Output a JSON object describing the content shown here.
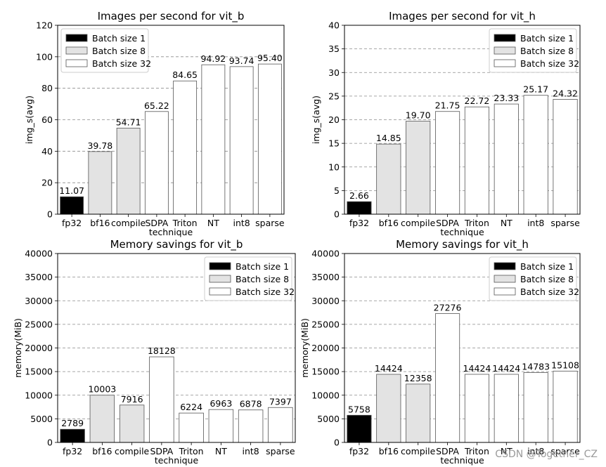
{
  "watermark": "CSDN @Together_CZ",
  "legend_labels": [
    "Batch size 1",
    "Batch size 8",
    "Batch size 32"
  ],
  "colors": {
    "batch1": "#000000",
    "batch8": "#e3e3e3",
    "batch32": "#ffffff",
    "grid": "#8a8a8a"
  },
  "chart_data": [
    {
      "type": "bar",
      "title": "Images per second for vit_b",
      "xlabel": "technique",
      "ylabel": "img_s(avg)",
      "categories": [
        "fp32",
        "bf16",
        "compile",
        "SDPA",
        "Triton",
        "NT",
        "int8",
        "sparse"
      ],
      "values": [
        11.07,
        39.78,
        54.71,
        65.22,
        84.65,
        94.92,
        93.74,
        95.4
      ],
      "value_labels": [
        "11.07",
        "39.78",
        "54.71",
        "65.22",
        "84.65",
        "94.92",
        "93.74",
        "95.40"
      ],
      "batch_sizes": [
        1,
        8,
        8,
        32,
        32,
        32,
        32,
        32
      ],
      "ylim": [
        0,
        120
      ],
      "yticks": [
        "0",
        "20",
        "40",
        "60",
        "80",
        "100",
        "120"
      ],
      "grid": "horizontal dashed",
      "legend": "top-left"
    },
    {
      "type": "bar",
      "title": "Images per second for vit_h",
      "xlabel": "technique",
      "ylabel": "img_s(avg)",
      "categories": [
        "fp32",
        "bf16",
        "compile",
        "SDPA",
        "Triton",
        "NT",
        "int8",
        "sparse"
      ],
      "values": [
        2.66,
        14.85,
        19.7,
        21.75,
        22.72,
        23.33,
        25.17,
        24.32
      ],
      "value_labels": [
        "2.66",
        "14.85",
        "19.70",
        "21.75",
        "22.72",
        "23.33",
        "25.17",
        "24.32"
      ],
      "batch_sizes": [
        1,
        8,
        8,
        32,
        32,
        32,
        32,
        32
      ],
      "ylim": [
        0,
        40
      ],
      "yticks": [
        "0",
        "5",
        "10",
        "15",
        "20",
        "25",
        "30",
        "35",
        "40"
      ],
      "grid": "horizontal dashed",
      "legend": "top-right"
    },
    {
      "type": "bar",
      "title": "Memory savings for vit_b",
      "xlabel": "technique",
      "ylabel": "memory(MiB)",
      "categories": [
        "fp32",
        "bf16",
        "compile",
        "SDPA",
        "Triton",
        "NT",
        "int8",
        "sparse"
      ],
      "values": [
        2789,
        10003,
        7916,
        18128,
        6224,
        6963,
        6878,
        7397
      ],
      "value_labels": [
        "2789",
        "10003",
        "7916",
        "18128",
        "6224",
        "6963",
        "6878",
        "7397"
      ],
      "batch_sizes": [
        1,
        8,
        8,
        32,
        32,
        32,
        32,
        32
      ],
      "ylim": [
        0,
        40000
      ],
      "yticks": [
        "0",
        "5000",
        "10000",
        "15000",
        "20000",
        "25000",
        "30000",
        "35000",
        "40000"
      ],
      "grid": "horizontal dashed",
      "legend": "top-right"
    },
    {
      "type": "bar",
      "title": "Memory savings for vit_h",
      "xlabel": "technique",
      "ylabel": "memory(MiB)",
      "categories": [
        "fp32",
        "bf16",
        "compile",
        "SDPA",
        "Triton",
        "NT",
        "int8",
        "sparse"
      ],
      "values": [
        5758,
        14424,
        12358,
        27276,
        14424,
        14424,
        14783,
        15108
      ],
      "value_labels": [
        "5758",
        "14424",
        "12358",
        "27276",
        "14424",
        "14424",
        "14783",
        "15108"
      ],
      "batch_sizes": [
        1,
        8,
        8,
        32,
        32,
        32,
        32,
        32
      ],
      "ylim": [
        0,
        40000
      ],
      "yticks": [
        "0",
        "5000",
        "10000",
        "15000",
        "20000",
        "25000",
        "30000",
        "35000",
        "40000"
      ],
      "grid": "horizontal dashed",
      "legend": "top-right"
    }
  ]
}
